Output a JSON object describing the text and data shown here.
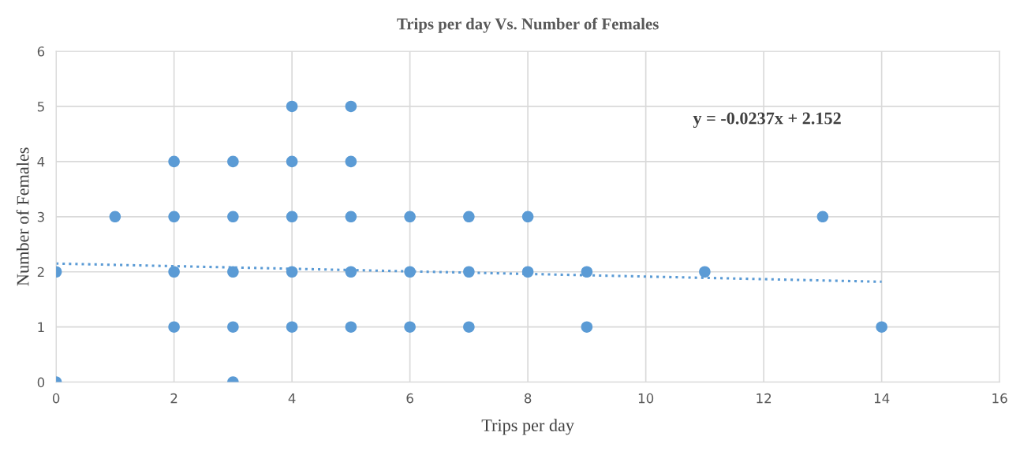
{
  "chart_data": {
    "type": "scatter",
    "title": "Trips per day Vs. Number of Females",
    "xlabel": "Trips per day",
    "ylabel": "Number of Females",
    "xlim": [
      0,
      16
    ],
    "xticks": [
      0,
      2,
      4,
      6,
      8,
      10,
      12,
      14,
      16
    ],
    "ylim": [
      0,
      6
    ],
    "yticks": [
      0,
      1,
      2,
      3,
      4,
      5,
      6
    ],
    "grid": true,
    "series": [
      {
        "marker": "circle",
        "color": "#5b9bd5",
        "x": [
          0,
          0,
          1,
          2,
          2,
          2,
          2,
          3,
          3,
          3,
          3,
          3,
          4,
          4,
          4,
          4,
          4,
          5,
          5,
          5,
          5,
          5,
          6,
          6,
          6,
          7,
          7,
          7,
          8,
          8,
          9,
          9,
          11,
          13,
          14
        ],
        "values": [
          2,
          0,
          3,
          4,
          3,
          2,
          1,
          4,
          3,
          2,
          1,
          0,
          5,
          4,
          3,
          2,
          1,
          5,
          4,
          3,
          2,
          1,
          3,
          2,
          1,
          3,
          2,
          1,
          3,
          2,
          2,
          1,
          2,
          3,
          1
        ]
      },
      {
        "type": "line",
        "color": "#5b9bd5",
        "line_style": "dotted",
        "marker": "none",
        "x": [
          0,
          14
        ],
        "values": [
          2.15,
          1.82
        ]
      }
    ],
    "annotations": [
      "y = -0.0237x + 2.152"
    ]
  }
}
